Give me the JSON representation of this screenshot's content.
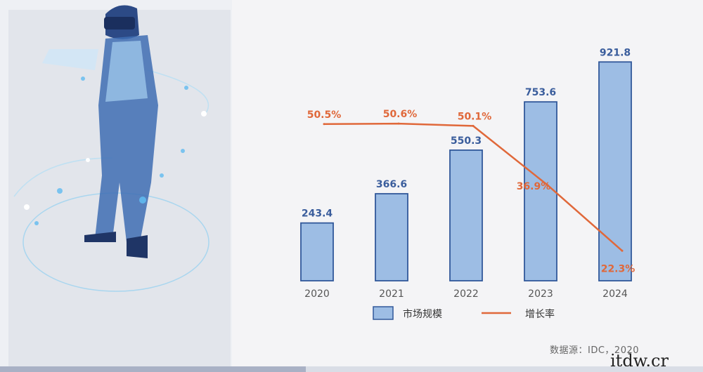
{
  "chart_data": {
    "type": "bar",
    "categories": [
      "2020",
      "2021",
      "2022",
      "2023",
      "2024"
    ],
    "series": [
      {
        "name": "市场规模",
        "kind": "bar",
        "values": [
          243.4,
          366.6,
          550.3,
          753.6,
          921.8
        ],
        "labels": [
          "243.4",
          "366.6",
          "550.3",
          "753.6",
          "921.8"
        ]
      },
      {
        "name": "增长率",
        "kind": "line",
        "values": [
          50.5,
          50.6,
          50.1,
          36.9,
          22.3
        ],
        "labels": [
          "50.5%",
          "50.6%",
          "50.1%",
          "36.9%",
          "22.3%"
        ]
      }
    ],
    "ylim": [
      0,
      1100
    ],
    "y2lim": [
      0,
      75
    ],
    "legend_position": "bottom",
    "grid": false,
    "title": "",
    "xlabel": "",
    "ylabel": ""
  },
  "source_text": "数据源：IDC，2020",
  "watermark_text": "itdw.cr",
  "colors": {
    "bar_fill": "#9dbde4",
    "bar_stroke": "#31589a",
    "line": "#e0683a",
    "bar_label": "#3a5d9c",
    "axis_label": "#555555",
    "line_label": "#e0683a"
  },
  "illustration": {
    "icon": "vr-headset-person-icon"
  },
  "scroll_progress": 0.435
}
